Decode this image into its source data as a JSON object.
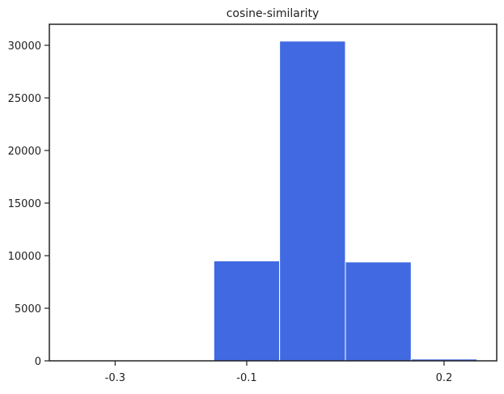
{
  "chart_data": {
    "type": "bar",
    "title": "cosine-similarity",
    "xlabel": "",
    "ylabel": "",
    "bins": [
      {
        "x0": -0.35,
        "x1": -0.25,
        "count": 60
      },
      {
        "x0": -0.25,
        "x1": -0.15,
        "count": 40
      },
      {
        "x0": -0.15,
        "x1": -0.05,
        "count": 9500
      },
      {
        "x0": -0.05,
        "x1": 0.05,
        "count": 30400
      },
      {
        "x0": 0.05,
        "x1": 0.15,
        "count": 9400
      },
      {
        "x0": 0.15,
        "x1": 0.25,
        "count": 170
      }
    ],
    "xlim": [
      -0.4,
      0.28
    ],
    "ylim": [
      0,
      32000
    ],
    "x_ticks": [
      {
        "value": -0.3,
        "label": "-0.3"
      },
      {
        "value": -0.1,
        "label": "-0.1"
      },
      {
        "value": 0.2,
        "label": "0.2"
      }
    ],
    "y_ticks": [
      {
        "value": 0,
        "label": "0"
      },
      {
        "value": 5000,
        "label": "5000"
      },
      {
        "value": 10000,
        "label": "10000"
      },
      {
        "value": 15000,
        "label": "15000"
      },
      {
        "value": 20000,
        "label": "20000"
      },
      {
        "value": 25000,
        "label": "25000"
      },
      {
        "value": 30000,
        "label": "30000"
      }
    ],
    "grid": false,
    "bar_color": "#4169e1",
    "bar_edge_color": "#ffffff",
    "axis_color": "#222222"
  }
}
